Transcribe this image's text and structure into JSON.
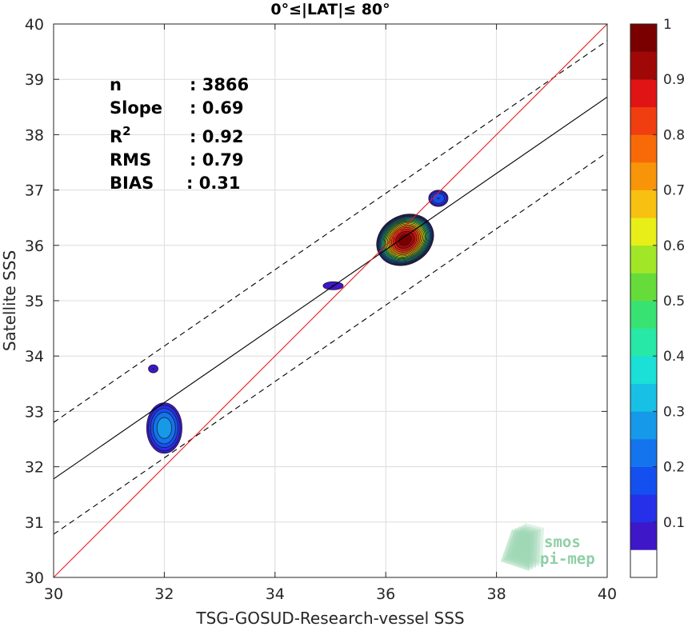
{
  "chart_data": {
    "type": "scatter",
    "title": "0°≤|LAT|≤ 80°",
    "xlabel": "TSG-GOSUD-Research-vessel SSS",
    "ylabel": "Satellite SSS",
    "xlim": [
      30,
      40
    ],
    "ylim": [
      30,
      40
    ],
    "xticks": [
      "30",
      "32",
      "34",
      "36",
      "38",
      "40"
    ],
    "yticks": [
      "30",
      "31",
      "32",
      "33",
      "34",
      "35",
      "36",
      "37",
      "38",
      "39",
      "40"
    ],
    "grid": true,
    "stats": [
      {
        "label": "n",
        "value": ": 3866"
      },
      {
        "label": "Slope",
        "value": ": 0.69"
      },
      {
        "label": "R",
        "sup": "2",
        "value": ": 0.92"
      },
      {
        "label": "RMS",
        "value": ": 0.79"
      },
      {
        "label": "BIAS",
        "value": ": 0.31"
      }
    ],
    "identity_line": {
      "color": "#e8181d",
      "x": [
        30,
        40
      ],
      "y": [
        30,
        40
      ]
    },
    "fit_line": {
      "color": "#000000",
      "x": [
        30,
        40
      ],
      "y": [
        31.78,
        38.68
      ]
    },
    "fit_band_upper": {
      "x": [
        30,
        40
      ],
      "y": [
        32.8,
        39.7
      ]
    },
    "fit_band_lower": {
      "x": [
        30,
        40
      ],
      "y": [
        30.78,
        37.68
      ]
    },
    "density_levels": [
      0.05,
      0.1,
      0.15,
      0.2,
      0.25,
      0.3,
      0.35,
      0.4,
      0.45,
      0.5,
      0.55,
      0.6,
      0.65,
      0.7,
      0.75,
      0.8,
      0.85,
      0.9,
      0.95
    ],
    "level_colors": [
      "#5a0fa8",
      "#3d17c8",
      "#2530e8",
      "#1450f0",
      "#1474ee",
      "#1599e8",
      "#18c0e6",
      "#1ae0d8",
      "#27e8a6",
      "#38e272",
      "#66dc3a",
      "#a2e628",
      "#e8ee18",
      "#f8c010",
      "#f89408",
      "#f86a08",
      "#f03e10",
      "#e01414",
      "#a00808",
      "#7a0000"
    ],
    "density_blobs": [
      {
        "cx": 36.35,
        "cy": 36.1,
        "rx": 0.55,
        "ry": 0.45,
        "max": 0.97
      },
      {
        "cx": 36.95,
        "cy": 36.85,
        "rx": 0.2,
        "ry": 0.17,
        "max": 0.2
      },
      {
        "cx": 35.05,
        "cy": 35.27,
        "rx": 0.25,
        "ry": 0.1,
        "max": 0.1
      },
      {
        "cx": 32.0,
        "cy": 32.7,
        "rx": 0.35,
        "ry": 0.5,
        "max": 0.28
      },
      {
        "cx": 31.8,
        "cy": 33.77,
        "rx": 0.12,
        "ry": 0.1,
        "max": 0.1
      }
    ],
    "colorbar": {
      "min": 0,
      "max": 1,
      "ticks": [
        "0.1",
        "0.2",
        "0.3",
        "0.4",
        "0.5",
        "0.6",
        "0.7",
        "0.8",
        "0.9",
        "1"
      ]
    },
    "watermark": [
      "smos",
      "pi-mep"
    ]
  }
}
